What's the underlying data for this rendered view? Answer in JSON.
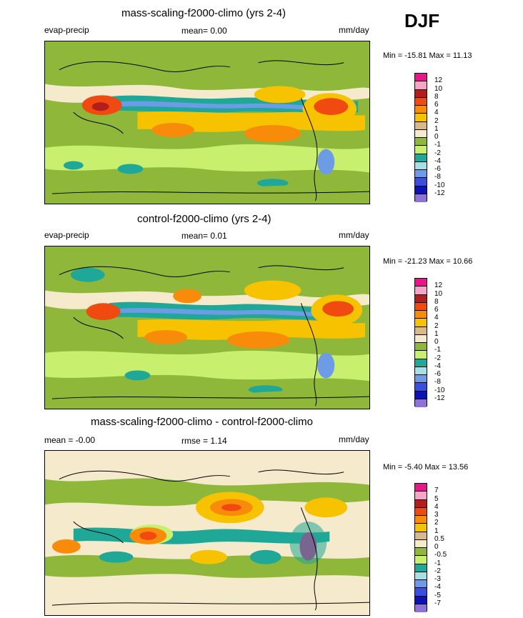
{
  "season": "DJF",
  "panels": [
    {
      "title": "mass-scaling-f2000-climo (yrs 2-4)",
      "left_label": "evap-precip",
      "stat_text": "mean=   0.00",
      "units": "mm/day",
      "minmax": "Min = -15.81 Max =  11.13",
      "levels": [
        "12",
        "10",
        "8",
        "6",
        "4",
        "2",
        "1",
        "0",
        "-1",
        "-2",
        "-4",
        "-6",
        "-8",
        "-10",
        "-12"
      ],
      "colors": [
        "#e8168a",
        "#f4a6c6",
        "#b21d1d",
        "#f04a10",
        "#f88c0a",
        "#f7c300",
        "#d9b98a",
        "#f5ebcc",
        "#8fb83b",
        "#c8ef6d",
        "#1fa898",
        "#a8dfe6",
        "#6d9be6",
        "#3a4fe0",
        "#0c12b6",
        "#8d72d8"
      ]
    },
    {
      "title": "control-f2000-climo (yrs 2-4)",
      "left_label": "evap-precip",
      "stat_text": "mean=   0.01",
      "units": "mm/day",
      "minmax": "Min = -21.23 Max =  10.66",
      "levels": [
        "12",
        "10",
        "8",
        "6",
        "4",
        "2",
        "1",
        "0",
        "-1",
        "-2",
        "-4",
        "-6",
        "-8",
        "-10",
        "-12"
      ],
      "colors": [
        "#e8168a",
        "#f4a6c6",
        "#b21d1d",
        "#f04a10",
        "#f88c0a",
        "#f7c300",
        "#d9b98a",
        "#f5ebcc",
        "#8fb83b",
        "#c8ef6d",
        "#1fa898",
        "#a8dfe6",
        "#6d9be6",
        "#3a4fe0",
        "#0c12b6",
        "#8d72d8"
      ]
    },
    {
      "title": "mass-scaling-f2000-climo - control-f2000-climo",
      "left_label": "mean =  -0.00",
      "stat_text": "rmse =   1.14",
      "units": "mm/day",
      "minmax": "Min =  -5.40 Max =  13.56",
      "levels": [
        "7",
        "5",
        "4",
        "3",
        "2",
        "1",
        "0.5",
        "0",
        "-0.5",
        "-1",
        "-2",
        "-3",
        "-4",
        "-5",
        "-7"
      ],
      "colors": [
        "#e8168a",
        "#f4a6c6",
        "#b21d1d",
        "#f04a10",
        "#f88c0a",
        "#f7c300",
        "#d9b98a",
        "#f5ebcc",
        "#8fb83b",
        "#c8ef6d",
        "#1fa898",
        "#a8dfe6",
        "#6d9be6",
        "#3a4fe0",
        "#0c12b6",
        "#8d72d8"
      ]
    }
  ]
}
